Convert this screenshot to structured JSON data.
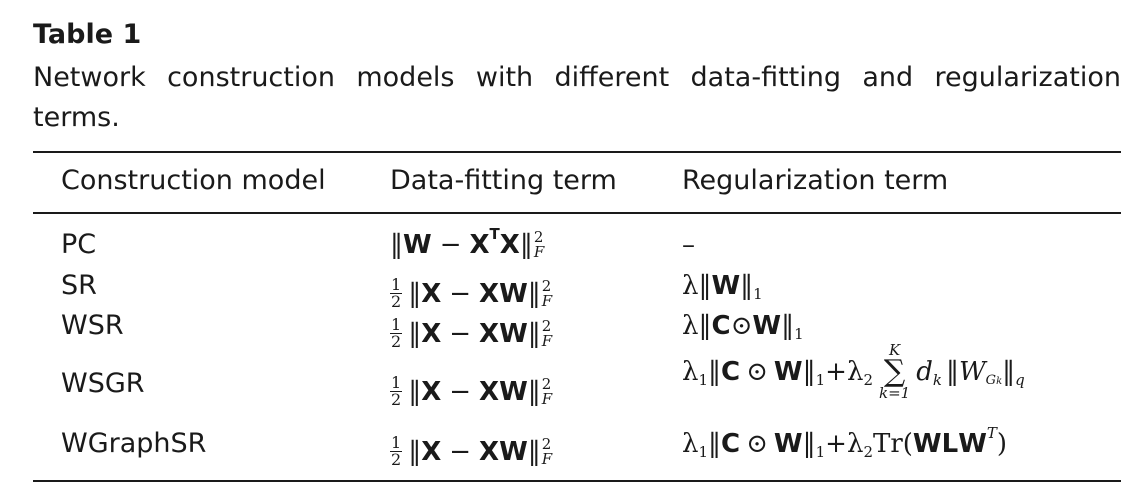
{
  "table": {
    "label": "Table 1",
    "caption": "Network construction models with different data-fitting and regularization terms.",
    "headers": [
      "Construction model",
      "Data-fitting term",
      "Regularization term"
    ],
    "rows": [
      {
        "model": "PC",
        "data_fitting": "‖W − XᵀX‖²_F",
        "regularization": "–"
      },
      {
        "model": "SR",
        "data_fitting": "½‖X − XW‖²_F",
        "regularization": "λ‖W‖₁"
      },
      {
        "model": "WSR",
        "data_fitting": "½‖X − XW‖²_F",
        "regularization": "λ‖C⊙W‖₁"
      },
      {
        "model": "WSGR",
        "data_fitting": "½‖X − XW‖²_F",
        "regularization": "λ₁‖C ⊙ W‖₁+λ₂ Σ_{k=1}^{K} d_k‖W_{G_k}‖_q"
      },
      {
        "model": "WGraphSR",
        "data_fitting": "½‖X − XW‖²_F",
        "regularization": "λ₁‖C ⊙ W‖₁+λ₂Tr(WLWᵀ)"
      }
    ],
    "math_glyphs": {
      "norm": "‖",
      "minus": "–",
      "minus_op": "−",
      "odot": "⊙",
      "lambda": "λ",
      "sigma": "∑",
      "plus": "+",
      "paren_open": "(",
      "paren_close": ")",
      "tr": "Tr",
      "W": "W",
      "X": "X",
      "C": "C",
      "L": "L",
      "T_bold": "T",
      "T_it": "T",
      "two": "2",
      "one": "1",
      "F": "F",
      "q": "q",
      "K": "K",
      "k_eq_1": "k=1",
      "d": "d",
      "k": "k",
      "G": "G",
      "frac_num": "1",
      "frac_den": "2"
    }
  }
}
